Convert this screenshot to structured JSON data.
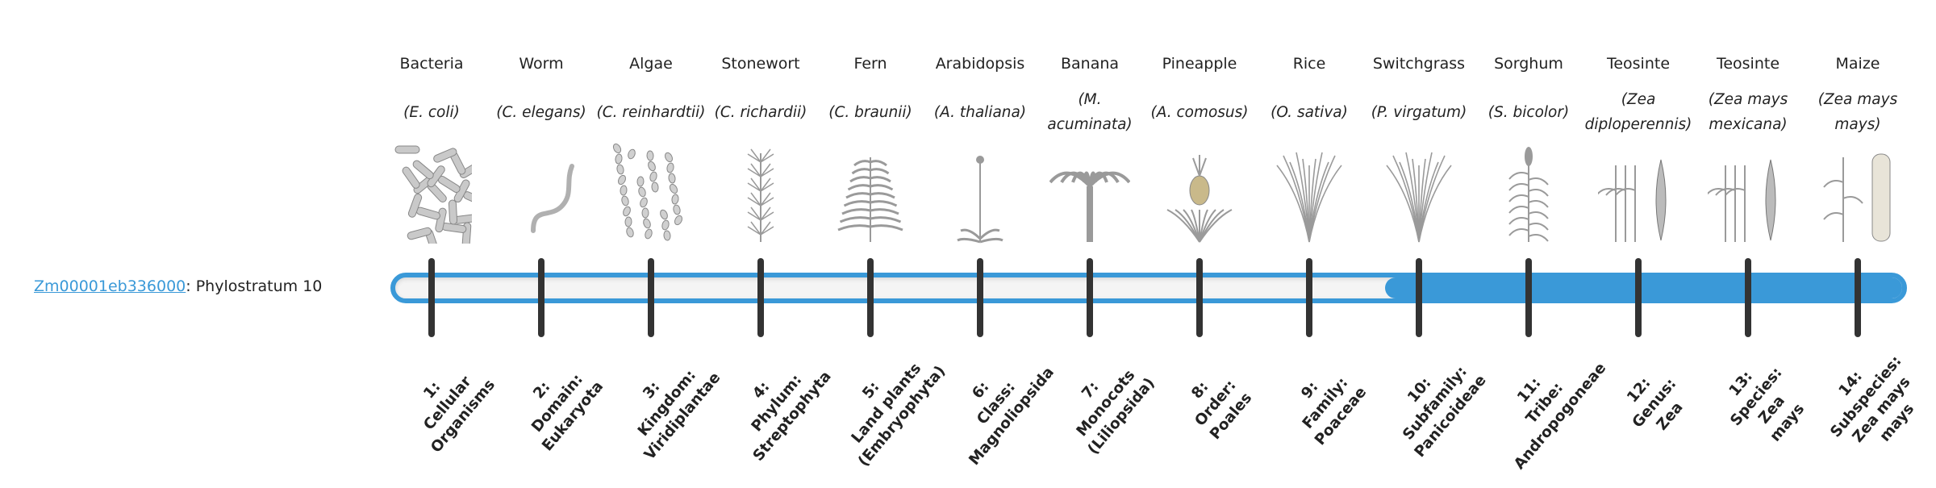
{
  "gene": {
    "id": "Zm00001eb336000",
    "separator": ":",
    "label": "Phylostratum 10"
  },
  "phylostratum": 10,
  "colors": {
    "accent": "#3a99d8",
    "tick": "#333333",
    "track": "#f4f4f4"
  },
  "organisms": [
    {
      "common": "Bacteria",
      "scientific": "(E. coli)",
      "illustration": "bacteria",
      "rank": [
        "1:",
        "Cellular",
        "Organisms"
      ]
    },
    {
      "common": "Worm",
      "scientific": "(C. elegans)",
      "illustration": "worm",
      "rank": [
        "2:",
        "Domain:",
        "Eukaryota"
      ]
    },
    {
      "common": "Algae",
      "scientific": "(C. reinhardtii)",
      "illustration": "algae",
      "rank": [
        "3:",
        "Kingdom:",
        "Viridiplantae"
      ]
    },
    {
      "common": "Stonewort",
      "scientific": "(C. richardii)",
      "illustration": "stonewort",
      "rank": [
        "4:",
        "Phylum:",
        "Streptophyta"
      ]
    },
    {
      "common": "Fern",
      "scientific": "(C. braunii)",
      "illustration": "fern",
      "rank": [
        "5:",
        "Land plants",
        "(Embryophyta)"
      ]
    },
    {
      "common": "Arabidopsis",
      "scientific": "(A. thaliana)",
      "illustration": "arabidopsis",
      "rank": [
        "6:",
        "Class:",
        "Magnoliopsida"
      ]
    },
    {
      "common": "Banana",
      "scientific": "(M. acuminata)",
      "illustration": "banana",
      "rank": [
        "7:",
        "Monocots",
        "(Liliopsida)"
      ]
    },
    {
      "common": "Pineapple",
      "scientific": "(A. comosus)",
      "illustration": "pineapple",
      "rank": [
        "8:",
        "Order:",
        "Poales"
      ]
    },
    {
      "common": "Rice",
      "scientific": "(O. sativa)",
      "illustration": "rice",
      "rank": [
        "9:",
        "Family:",
        "Poaceae"
      ]
    },
    {
      "common": "Switchgrass",
      "scientific": "(P. virgatum)",
      "illustration": "switchgrass",
      "rank": [
        "10:",
        "Subfamily:",
        "Panicoideae"
      ]
    },
    {
      "common": "Sorghum",
      "scientific": "(S. bicolor)",
      "illustration": "sorghum",
      "rank": [
        "11:",
        "Tribe:",
        "Andropogoneae"
      ]
    },
    {
      "common": "Teosinte",
      "scientific": "(Zea diploperennis)",
      "illustration": "teosinte",
      "rank": [
        "12:",
        "Genus:",
        "Zea"
      ]
    },
    {
      "common": "Teosinte",
      "scientific": "(Zea mays mexicana)",
      "illustration": "teosinte",
      "rank": [
        "13:",
        "Species:",
        "Zea",
        "mays"
      ]
    },
    {
      "common": "Maize",
      "scientific": "(Zea mays mays)",
      "illustration": "maize",
      "rank": [
        "14:",
        "Subspecies:",
        "Zea mays",
        "mays"
      ]
    }
  ]
}
